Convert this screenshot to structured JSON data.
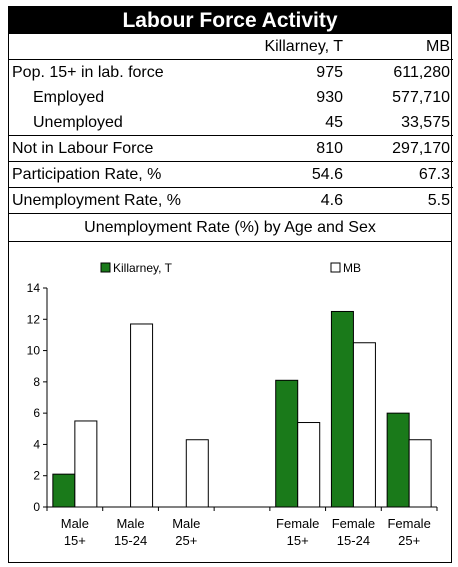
{
  "table": {
    "title": "Labour Force Activity",
    "columns": [
      "",
      "Killarney, T",
      "MB"
    ],
    "rows": [
      {
        "label": "Pop. 15+ in lab. force",
        "a": "975",
        "b": "611,280"
      },
      {
        "label": "Employed",
        "a": "930",
        "b": "577,710"
      },
      {
        "label": "Unemployed",
        "a": "45",
        "b": "33,575"
      },
      {
        "label": "Not in Labour Force",
        "a": "810",
        "b": "297,170"
      },
      {
        "label": "Participation Rate, %",
        "a": "54.6",
        "b": "67.3"
      },
      {
        "label": "Unemployment Rate, %",
        "a": "4.6",
        "b": "5.5"
      }
    ]
  },
  "chart_data": {
    "type": "bar",
    "title": "Unemployment Rate (%) by Age and Sex",
    "categories": [
      [
        "Male",
        "15+"
      ],
      [
        "Male",
        "15-24"
      ],
      [
        "Male",
        "25+"
      ],
      [
        "",
        ""
      ],
      [
        "Female",
        "15+"
      ],
      [
        "Female",
        "15-24"
      ],
      [
        "Female",
        "25+"
      ]
    ],
    "series": [
      {
        "name": "Killarney, T",
        "color": "#1a7a1a",
        "values": [
          2.1,
          null,
          null,
          null,
          8.1,
          12.5,
          6.0
        ]
      },
      {
        "name": "MB",
        "color": "#ffffff",
        "values": [
          5.5,
          11.7,
          4.3,
          null,
          5.4,
          10.5,
          4.3
        ]
      }
    ],
    "ylim": [
      0,
      14
    ],
    "yticks": [
      0,
      2,
      4,
      6,
      8,
      10,
      12,
      14
    ],
    "legend": "top",
    "grid": false
  }
}
